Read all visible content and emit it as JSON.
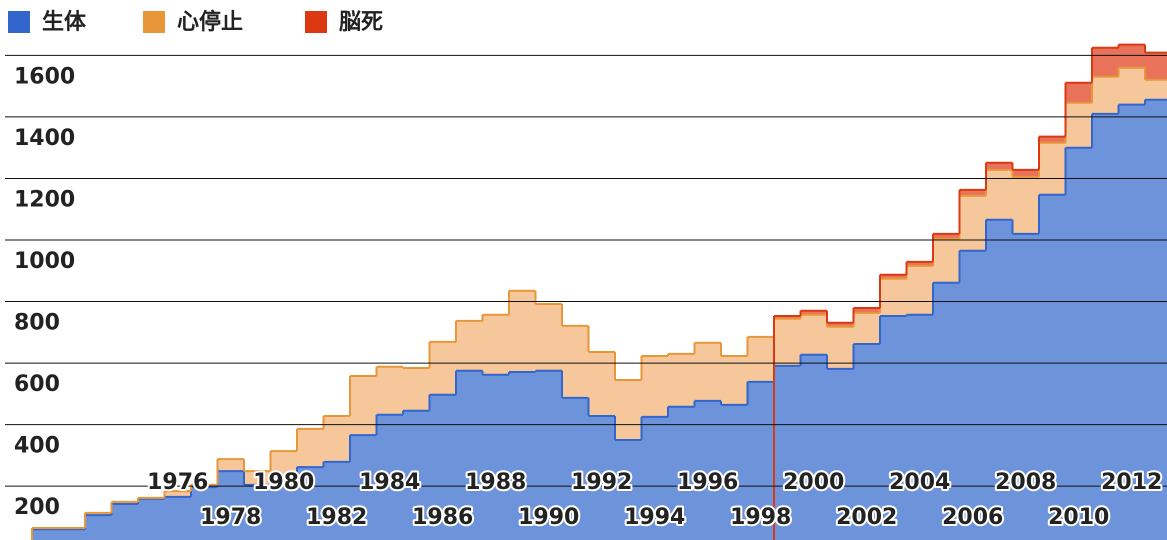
{
  "chart_data": {
    "type": "stepped-area",
    "categories": [
      null,
      null,
      null,
      null,
      null,
      "1976",
      null,
      "1978",
      null,
      "1980",
      null,
      "1982",
      null,
      "1984",
      null,
      "1986",
      null,
      "1988",
      null,
      "1990",
      null,
      "1992",
      null,
      "1994",
      null,
      "1996",
      null,
      "1998",
      null,
      "2000",
      null,
      "2002",
      null,
      "2004",
      null,
      "2006",
      null,
      "2008",
      null,
      "2010",
      null,
      "2012",
      null
    ],
    "series": [
      {
        "name": "生体",
        "color": "#3366cc",
        "fill": "#6d93db",
        "values": [
          35,
          35,
          81,
          117,
          134,
          140,
          172,
          224,
          179,
          192,
          237,
          254,
          341,
          407,
          420,
          472,
          550,
          537,
          546,
          550,
          462,
          403,
          325,
          400,
          433,
          452,
          439,
          514,
          566,
          602,
          556,
          637,
          728,
          732,
          836,
          940,
          1041,
          995,
          1122,
          1275,
          1385,
          1415,
          1431
        ]
      },
      {
        "name": "心停止",
        "color": "#e8963a",
        "fill": "#f5c79a",
        "values": [
          4,
          4,
          7,
          7,
          3,
          19,
          7,
          39,
          45,
          97,
          124,
          149,
          192,
          156,
          139,
          172,
          162,
          195,
          264,
          217,
          234,
          208,
          195,
          198,
          172,
          189,
          159,
          146,
          153,
          130,
          137,
          101,
          121,
          159,
          143,
          179,
          162,
          185,
          169,
          146,
          121,
          120,
          65
        ]
      },
      {
        "name": "脳死",
        "color": "#dc3912",
        "fill": "#e8735a",
        "values": [
          null,
          null,
          null,
          null,
          null,
          null,
          null,
          null,
          null,
          null,
          null,
          null,
          null,
          null,
          null,
          null,
          null,
          null,
          null,
          null,
          null,
          null,
          null,
          null,
          null,
          null,
          null,
          null,
          9,
          13,
          13,
          16,
          13,
          13,
          16,
          19,
          23,
          23,
          20,
          65,
          94,
          75,
          88
        ]
      }
    ],
    "ylim": [
      25,
      1650
    ],
    "yticks": [
      200,
      400,
      600,
      800,
      1000,
      1200,
      1400,
      1600
    ],
    "grid": true
  }
}
